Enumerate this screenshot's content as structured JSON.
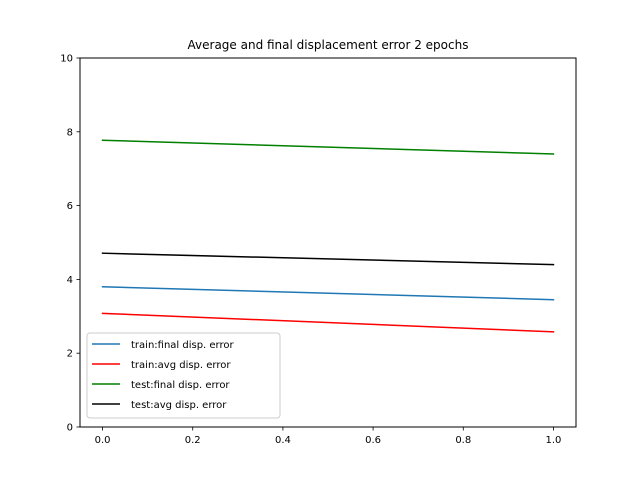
{
  "chart_data": {
    "type": "line",
    "title": "Average and final displacement error 2 epochs",
    "xlabel": "",
    "ylabel": "",
    "x": [
      0.0,
      1.0
    ],
    "xlim": [
      -0.05,
      1.05
    ],
    "ylim": [
      0,
      10
    ],
    "xticks": [
      0.0,
      0.2,
      0.4,
      0.6,
      0.8,
      1.0
    ],
    "xtick_labels": [
      "0.0",
      "0.2",
      "0.4",
      "0.6",
      "0.8",
      "1.0"
    ],
    "yticks": [
      0,
      2,
      4,
      6,
      8,
      10
    ],
    "ytick_labels": [
      "0",
      "2",
      "4",
      "6",
      "8",
      "10"
    ],
    "grid": false,
    "legend_position": "lower-left",
    "series": [
      {
        "name": "train:final disp. error",
        "color": "#1f77b4",
        "values": [
          3.8,
          3.45
        ]
      },
      {
        "name": "train:avg disp. error",
        "color": "#ff0000",
        "values": [
          3.08,
          2.58
        ]
      },
      {
        "name": "test:final disp. error",
        "color": "#008000",
        "values": [
          7.77,
          7.4
        ]
      },
      {
        "name": "test:avg disp. error",
        "color": "#000000",
        "values": [
          4.71,
          4.4
        ]
      }
    ]
  }
}
